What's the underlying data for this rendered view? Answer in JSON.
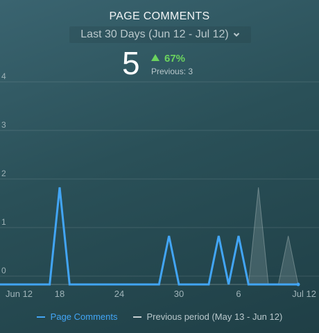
{
  "header": {
    "title": "PAGE COMMENTS",
    "range_label": "Last 30 Days (Jun 12 - Jul 12)"
  },
  "kpi": {
    "value": "5",
    "delta": "67%",
    "previous": "Previous: 3"
  },
  "colors": {
    "current": "#42a5f5",
    "previous": "#c8d0d2",
    "positive": "#6bd35e"
  },
  "icons": {
    "range_dropdown": "chevron-down-icon",
    "delta": "triangle-up-icon"
  },
  "chart_data": {
    "type": "line",
    "title": "PAGE COMMENTS",
    "ylim": [
      0,
      4
    ],
    "y_ticks": [
      "0",
      "1",
      "2",
      "3",
      "4"
    ],
    "x_ticks": [
      {
        "day": 0,
        "label": "Jun 12"
      },
      {
        "day": 6,
        "label": "18"
      },
      {
        "day": 12,
        "label": "24"
      },
      {
        "day": 18,
        "label": "30"
      },
      {
        "day": 24,
        "label": "6"
      },
      {
        "day": 30,
        "label": "Jul 12"
      }
    ],
    "grid": true,
    "legend_position": "bottom",
    "series": [
      {
        "name": "Page Comments",
        "values": [
          0,
          0,
          0,
          0,
          0,
          0,
          2,
          0,
          0,
          0,
          0,
          0,
          0,
          0,
          0,
          0,
          0,
          1,
          0,
          0,
          0,
          0,
          1,
          0,
          1,
          0,
          0,
          0,
          0,
          0,
          0
        ]
      },
      {
        "name": "Previous period (May 13 - Jun 12)",
        "values": [
          0,
          0,
          0,
          0,
          0,
          0,
          0,
          0,
          0,
          0,
          0,
          0,
          0,
          0,
          0,
          0,
          0,
          0,
          0,
          0,
          0,
          0,
          0,
          0,
          0,
          0,
          2,
          0,
          0,
          1,
          0
        ]
      }
    ]
  }
}
